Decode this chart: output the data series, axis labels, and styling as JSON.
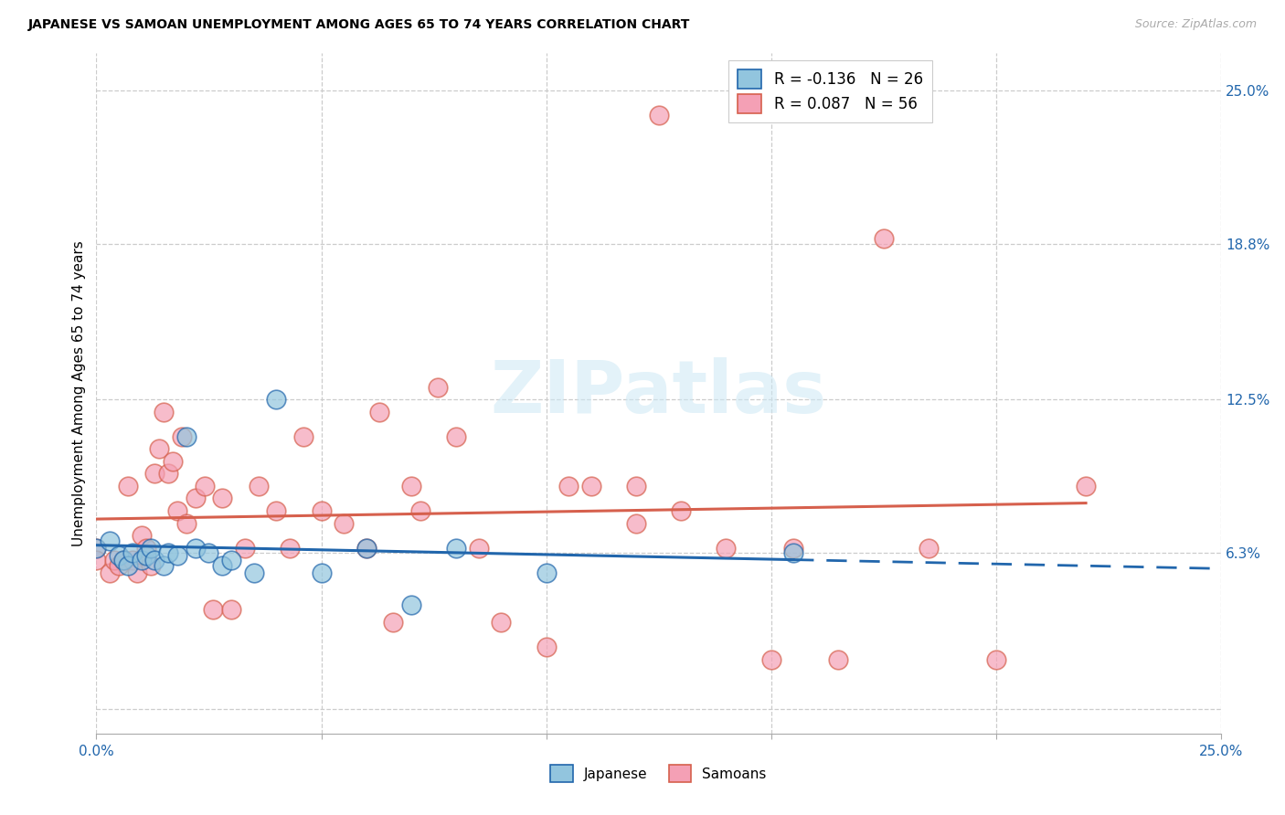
{
  "title": "JAPANESE VS SAMOAN UNEMPLOYMENT AMONG AGES 65 TO 74 YEARS CORRELATION CHART",
  "source": "Source: ZipAtlas.com",
  "ylabel": "Unemployment Among Ages 65 to 74 years",
  "xlim": [
    0.0,
    0.25
  ],
  "ylim": [
    -0.01,
    0.265
  ],
  "color_japanese": "#92c5de",
  "color_samoans": "#f4a0b5",
  "line_color_japanese": "#2166ac",
  "line_color_samoans": "#d6604d",
  "legend_r_japanese": "R = -0.136   N = 26",
  "legend_r_samoans": "R = 0.087   N = 56",
  "watermark_text": "ZIPatlas",
  "japanese_x": [
    0.0,
    0.003,
    0.005,
    0.006,
    0.007,
    0.008,
    0.01,
    0.011,
    0.012,
    0.013,
    0.015,
    0.016,
    0.018,
    0.02,
    0.022,
    0.025,
    0.028,
    0.03,
    0.035,
    0.04,
    0.05,
    0.06,
    0.07,
    0.08,
    0.1,
    0.155
  ],
  "japanese_y": [
    0.065,
    0.068,
    0.062,
    0.06,
    0.058,
    0.063,
    0.06,
    0.062,
    0.065,
    0.06,
    0.058,
    0.063,
    0.062,
    0.11,
    0.065,
    0.063,
    0.058,
    0.06,
    0.055,
    0.125,
    0.055,
    0.065,
    0.042,
    0.065,
    0.055,
    0.063
  ],
  "samoans_x": [
    0.0,
    0.0,
    0.003,
    0.004,
    0.005,
    0.006,
    0.007,
    0.008,
    0.009,
    0.01,
    0.011,
    0.012,
    0.013,
    0.014,
    0.015,
    0.016,
    0.017,
    0.018,
    0.019,
    0.02,
    0.022,
    0.024,
    0.026,
    0.028,
    0.03,
    0.033,
    0.036,
    0.04,
    0.043,
    0.046,
    0.05,
    0.055,
    0.06,
    0.063,
    0.066,
    0.07,
    0.072,
    0.076,
    0.08,
    0.085,
    0.09,
    0.1,
    0.105,
    0.11,
    0.12,
    0.12,
    0.125,
    0.13,
    0.14,
    0.15,
    0.155,
    0.165,
    0.175,
    0.185,
    0.2,
    0.22
  ],
  "samoans_y": [
    0.065,
    0.06,
    0.055,
    0.06,
    0.058,
    0.06,
    0.09,
    0.06,
    0.055,
    0.07,
    0.065,
    0.058,
    0.095,
    0.105,
    0.12,
    0.095,
    0.1,
    0.08,
    0.11,
    0.075,
    0.085,
    0.09,
    0.04,
    0.085,
    0.04,
    0.065,
    0.09,
    0.08,
    0.065,
    0.11,
    0.08,
    0.075,
    0.065,
    0.12,
    0.035,
    0.09,
    0.08,
    0.13,
    0.11,
    0.065,
    0.035,
    0.025,
    0.09,
    0.09,
    0.075,
    0.09,
    0.24,
    0.08,
    0.065,
    0.02,
    0.065,
    0.02,
    0.19,
    0.065,
    0.02,
    0.09
  ],
  "ytick_positions": [
    0.0,
    0.063,
    0.125,
    0.188,
    0.25
  ],
  "ytick_labels": [
    "",
    "6.3%",
    "12.5%",
    "18.8%",
    "25.0%"
  ],
  "xtick_positions": [
    0.0,
    0.05,
    0.1,
    0.15,
    0.2,
    0.25
  ],
  "xtick_labels": [
    "0.0%",
    "",
    "",
    "",
    "",
    "25.0%"
  ]
}
